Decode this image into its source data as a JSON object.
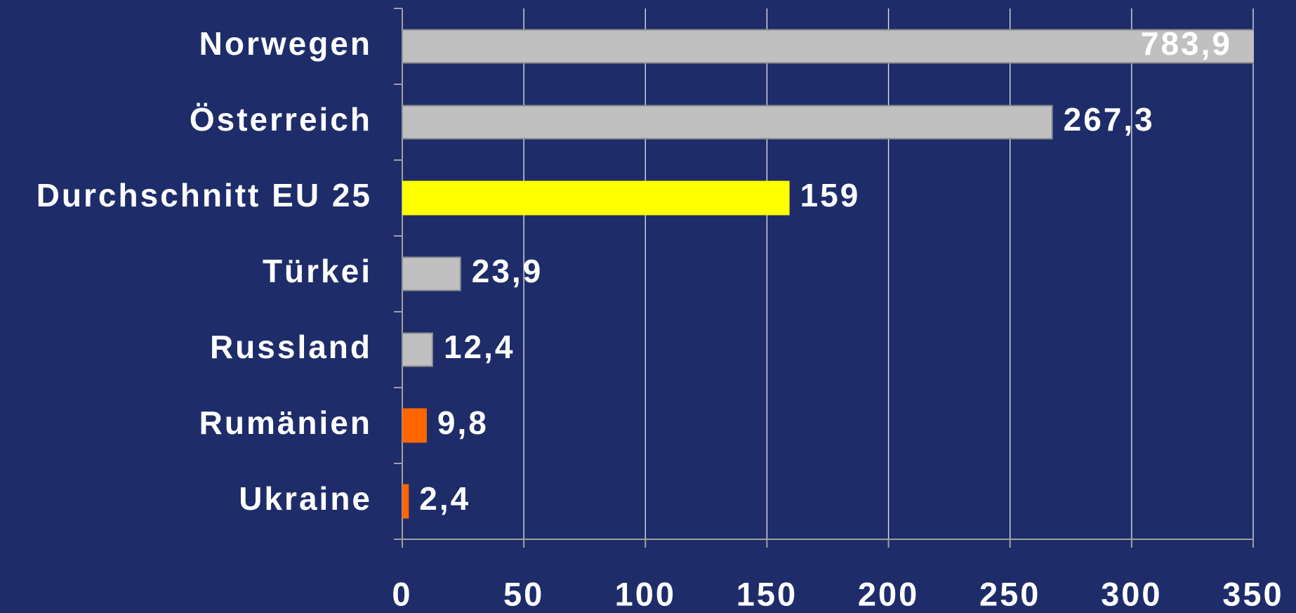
{
  "chart_data": {
    "type": "bar",
    "orientation": "horizontal",
    "categories": [
      "Norwegen",
      "Österreich",
      "Durchschnitt EU 25",
      "Türkei",
      "Russland",
      "Rumänien",
      "Ukraine"
    ],
    "values": [
      783.9,
      267.3,
      159,
      23.9,
      12.4,
      9.8,
      2.4
    ],
    "value_labels": [
      "783,9",
      "267,3",
      "159",
      "23,9",
      "12,4",
      "9,8",
      "2,4"
    ],
    "colors": [
      "#c0c0c0",
      "#c0c0c0",
      "#ffff00",
      "#c0c0c0",
      "#c0c0c0",
      "#ff6600",
      "#ff6600"
    ],
    "label_colors": [
      "#ff3300",
      "#ffffff",
      "#ffffff",
      "#ffffff",
      "#ffffff",
      "#ffffff",
      "#ffffff"
    ],
    "xlim": [
      0,
      350
    ],
    "xticks": [
      0,
      50,
      100,
      150,
      200,
      250,
      300,
      350
    ],
    "grid": true
  }
}
